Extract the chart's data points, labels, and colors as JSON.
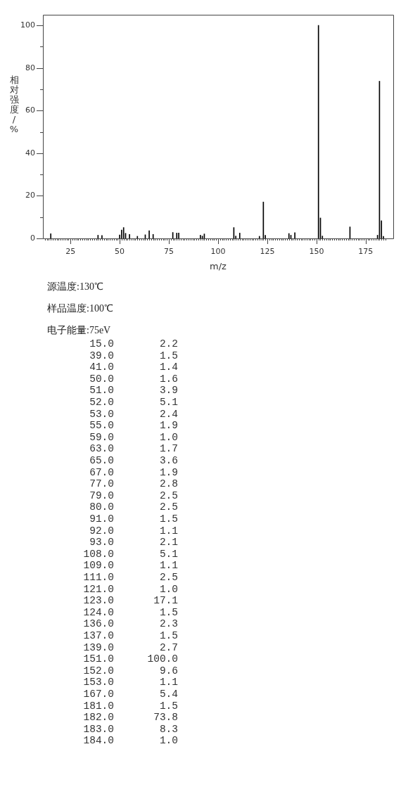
{
  "chart_data": [
    {
      "type": "bar",
      "xlabel": "m/z",
      "ylabel": "相对强度/%",
      "annotations": [
        "源温度:130℃",
        "样品温度:100℃",
        "电子能量:75eV"
      ],
      "x": [
        15,
        39,
        41,
        50,
        51,
        52,
        53,
        55,
        59,
        63,
        65,
        67,
        77,
        79,
        80,
        91,
        92,
        93,
        108,
        109,
        111,
        121,
        123,
        124,
        136,
        137,
        139,
        151,
        152,
        153,
        167,
        181,
        182,
        183,
        184
      ],
      "values": [
        2.2,
        1.5,
        1.4,
        1.6,
        3.9,
        5.1,
        2.4,
        1.9,
        1.0,
        1.7,
        3.6,
        1.9,
        2.8,
        2.5,
        2.5,
        1.5,
        1.1,
        2.1,
        5.1,
        1.1,
        2.5,
        1.0,
        17.1,
        1.5,
        2.3,
        1.5,
        2.7,
        100.0,
        9.6,
        1.1,
        5.4,
        1.5,
        73.8,
        8.3,
        1.0
      ],
      "color": "#000000",
      "xlim": [
        11,
        189
      ],
      "xticks": [
        {
          "value": 12,
          "label": null
        },
        {
          "value": 13,
          "label": null
        },
        {
          "value": 14,
          "label": null
        },
        {
          "value": 15,
          "label": null
        },
        {
          "value": 16,
          "label": null
        },
        {
          "value": 17,
          "label": null
        },
        {
          "value": 18,
          "label": null
        },
        {
          "value": 19,
          "label": null
        },
        {
          "value": 20,
          "label": null
        },
        {
          "value": 21,
          "label": null
        },
        {
          "value": 22,
          "label": null
        },
        {
          "value": 23,
          "label": null
        },
        {
          "value": 24,
          "label": null
        },
        25,
        {
          "value": 26,
          "label": null
        },
        {
          "value": 27,
          "label": null
        },
        {
          "value": 28,
          "label": null
        },
        {
          "value": 29,
          "label": null
        },
        {
          "value": 30,
          "label": null
        },
        {
          "value": 31,
          "label": null
        },
        {
          "value": 32,
          "label": null
        },
        {
          "value": 33,
          "label": null
        },
        {
          "value": 34,
          "label": null
        },
        {
          "value": 35,
          "label": null
        },
        {
          "value": 36,
          "label": null
        },
        {
          "value": 37,
          "label": null
        },
        {
          "value": 38,
          "label": null
        },
        {
          "value": 39,
          "label": null
        },
        {
          "value": 40,
          "label": null
        },
        {
          "value": 41,
          "label": null
        },
        {
          "value": 42,
          "label": null
        },
        {
          "value": 43,
          "label": null
        },
        {
          "value": 44,
          "label": null
        },
        {
          "value": 45,
          "label": null
        },
        {
          "value": 46,
          "label": null
        },
        {
          "value": 47,
          "label": null
        },
        {
          "value": 48,
          "label": null
        },
        {
          "value": 49,
          "label": null
        },
        50,
        {
          "value": 51,
          "label": null
        },
        {
          "value": 52,
          "label": null
        },
        {
          "value": 53,
          "label": null
        },
        {
          "value": 54,
          "label": null
        },
        {
          "value": 55,
          "label": null
        },
        {
          "value": 56,
          "label": null
        },
        {
          "value": 57,
          "label": null
        },
        {
          "value": 58,
          "label": null
        },
        {
          "value": 59,
          "label": null
        },
        {
          "value": 60,
          "label": null
        },
        {
          "value": 61,
          "label": null
        },
        {
          "value": 62,
          "label": null
        },
        {
          "value": 63,
          "label": null
        },
        {
          "value": 64,
          "label": null
        },
        {
          "value": 65,
          "label": null
        },
        {
          "value": 66,
          "label": null
        },
        {
          "value": 67,
          "label": null
        },
        {
          "value": 68,
          "label": null
        },
        {
          "value": 69,
          "label": null
        },
        {
          "value": 70,
          "label": null
        },
        {
          "value": 71,
          "label": null
        },
        {
          "value": 72,
          "label": null
        },
        {
          "value": 73,
          "label": null
        },
        {
          "value": 74,
          "label": null
        },
        75,
        {
          "value": 76,
          "label": null
        },
        {
          "value": 77,
          "label": null
        },
        {
          "value": 78,
          "label": null
        },
        {
          "value": 79,
          "label": null
        },
        {
          "value": 80,
          "label": null
        },
        {
          "value": 81,
          "label": null
        },
        {
          "value": 82,
          "label": null
        },
        {
          "value": 83,
          "label": null
        },
        {
          "value": 84,
          "label": null
        },
        {
          "value": 85,
          "label": null
        },
        {
          "value": 86,
          "label": null
        },
        {
          "value": 87,
          "label": null
        },
        {
          "value": 88,
          "label": null
        },
        {
          "value": 89,
          "label": null
        },
        {
          "value": 90,
          "label": null
        },
        {
          "value": 91,
          "label": null
        },
        {
          "value": 92,
          "label": null
        },
        {
          "value": 93,
          "label": null
        },
        {
          "value": 94,
          "label": null
        },
        {
          "value": 95,
          "label": null
        },
        {
          "value": 96,
          "label": null
        },
        {
          "value": 97,
          "label": null
        },
        {
          "value": 98,
          "label": null
        },
        {
          "value": 99,
          "label": null
        },
        100,
        {
          "value": 101,
          "label": null
        },
        {
          "value": 102,
          "label": null
        },
        {
          "value": 103,
          "label": null
        },
        {
          "value": 104,
          "label": null
        },
        {
          "value": 105,
          "label": null
        },
        {
          "value": 106,
          "label": null
        },
        {
          "value": 107,
          "label": null
        },
        {
          "value": 108,
          "label": null
        },
        {
          "value": 109,
          "label": null
        },
        {
          "value": 110,
          "label": null
        },
        {
          "value": 111,
          "label": null
        },
        {
          "value": 112,
          "label": null
        },
        {
          "value": 113,
          "label": null
        },
        {
          "value": 114,
          "label": null
        },
        {
          "value": 115,
          "label": null
        },
        {
          "value": 116,
          "label": null
        },
        {
          "value": 117,
          "label": null
        },
        {
          "value": 118,
          "label": null
        },
        {
          "value": 119,
          "label": null
        },
        {
          "value": 120,
          "label": null
        },
        {
          "value": 121,
          "label": null
        },
        {
          "value": 122,
          "label": null
        },
        {
          "value": 123,
          "label": null
        },
        {
          "value": 124,
          "label": null
        },
        125,
        {
          "value": 126,
          "label": null
        },
        {
          "value": 127,
          "label": null
        },
        {
          "value": 128,
          "label": null
        },
        {
          "value": 129,
          "label": null
        },
        {
          "value": 130,
          "label": null
        },
        {
          "value": 131,
          "label": null
        },
        {
          "value": 132,
          "label": null
        },
        {
          "value": 133,
          "label": null
        },
        {
          "value": 134,
          "label": null
        },
        {
          "value": 135,
          "label": null
        },
        {
          "value": 136,
          "label": null
        },
        {
          "value": 137,
          "label": null
        },
        {
          "value": 138,
          "label": null
        },
        {
          "value": 139,
          "label": null
        },
        {
          "value": 140,
          "label": null
        },
        {
          "value": 141,
          "label": null
        },
        {
          "value": 142,
          "label": null
        },
        {
          "value": 143,
          "label": null
        },
        {
          "value": 144,
          "label": null
        },
        {
          "value": 145,
          "label": null
        },
        {
          "value": 146,
          "label": null
        },
        {
          "value": 147,
          "label": null
        },
        {
          "value": 148,
          "label": null
        },
        {
          "value": 149,
          "label": null
        },
        150,
        {
          "value": 151,
          "label": null
        },
        {
          "value": 152,
          "label": null
        },
        {
          "value": 153,
          "label": null
        },
        {
          "value": 154,
          "label": null
        },
        {
          "value": 155,
          "label": null
        },
        {
          "value": 156,
          "label": null
        },
        {
          "value": 157,
          "label": null
        },
        {
          "value": 158,
          "label": null
        },
        {
          "value": 159,
          "label": null
        },
        {
          "value": 160,
          "label": null
        },
        {
          "value": 161,
          "label": null
        },
        {
          "value": 162,
          "label": null
        },
        {
          "value": 163,
          "label": null
        },
        {
          "value": 164,
          "label": null
        },
        {
          "value": 165,
          "label": null
        },
        {
          "value": 166,
          "label": null
        },
        {
          "value": 167,
          "label": null
        },
        {
          "value": 168,
          "label": null
        },
        {
          "value": 169,
          "label": null
        },
        {
          "value": 170,
          "label": null
        },
        {
          "value": 171,
          "label": null
        },
        {
          "value": 172,
          "label": null
        },
        {
          "value": 173,
          "label": null
        },
        {
          "value": 174,
          "label": null
        },
        175,
        {
          "value": 176,
          "label": null
        },
        {
          "value": 177,
          "label": null
        },
        {
          "value": 178,
          "label": null
        },
        {
          "value": 179,
          "label": null
        },
        {
          "value": 180,
          "label": null
        },
        {
          "value": 181,
          "label": null
        },
        {
          "value": 182,
          "label": null
        },
        {
          "value": 183,
          "label": null
        },
        {
          "value": 184,
          "label": null
        },
        {
          "value": 185,
          "label": null
        }
      ],
      "ylim": [
        0,
        105
      ],
      "yticks": [
        0,
        {
          "value": 10,
          "label": null
        },
        20,
        {
          "value": 30,
          "label": null
        },
        40,
        {
          "value": 50,
          "label": null
        },
        60,
        {
          "value": 70,
          "label": null
        },
        80,
        {
          "value": 90,
          "label": null
        },
        100
      ]
    },
    {
      "type": "other",
      "annotations": [
        "15.0",
        "2.2",
        "39.0",
        "1.5",
        "41.0",
        "1.4",
        "50.0",
        "1.6",
        "51.0",
        "3.9",
        "52.0",
        "5.1",
        "53.0",
        "2.4",
        "55.0",
        "1.9",
        "59.0",
        "1.0",
        "63.0",
        "1.7",
        "65.0",
        "3.6",
        "67.0",
        "1.9",
        "77.0",
        "2.8",
        "79.0",
        "2.5",
        "80.0",
        "2.5",
        "91.0",
        "1.5",
        "92.0",
        "1.1",
        "93.0",
        "2.1",
        "108.0",
        "5.1",
        "109.0",
        "1.1",
        "111.0",
        "2.5",
        "121.0",
        "1.0",
        "123.0",
        "17.1",
        "124.0",
        "1.5",
        "136.0",
        "2.3",
        "137.0",
        "1.5",
        "139.0",
        "2.7",
        "151.0",
        "100.0",
        "152.0",
        "9.6",
        "153.0",
        "1.1",
        "167.0",
        "5.4",
        "181.0",
        "1.5",
        "182.0",
        "73.8",
        "183.0",
        "8.3",
        "184.0",
        "1.0"
      ]
    }
  ]
}
